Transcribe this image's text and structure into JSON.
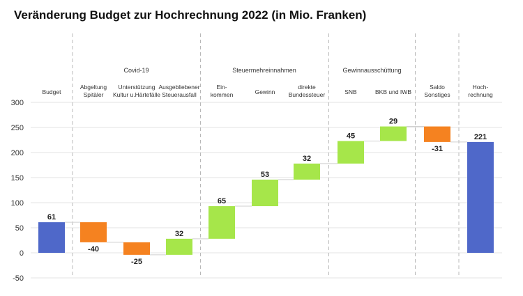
{
  "title": "Veränderung Budget zur Hochrechnung 2022 (in Mio. Franken)",
  "chart_data": {
    "type": "waterfall",
    "title": "Veränderung Budget zur Hochrechnung 2022 (in Mio. Franken)",
    "xlabel": "",
    "ylabel": "",
    "ylim": [
      -50,
      300
    ],
    "yticks": [
      -50,
      0,
      50,
      100,
      150,
      200,
      250,
      300
    ],
    "grid": true,
    "legend": "none",
    "groups": [
      {
        "label": "Covid-19",
        "items": [
          "Abgeltung Spitäler",
          "Unterstützung Kultur u.Härtefälle",
          "Ausgebliebener Steuerausfall"
        ]
      },
      {
        "label": "Steuermehreinnahmen",
        "items": [
          "Einkommen",
          "Gewinn",
          "direkte Bundessteuer"
        ]
      },
      {
        "label": "Gewinnausschüttung",
        "items": [
          "SNB",
          "BKB und IWB"
        ]
      }
    ],
    "bars": [
      {
        "label_lines": [
          "Budget"
        ],
        "value": 61,
        "kind": "total",
        "label": "61"
      },
      {
        "label_lines": [
          "Abgeltung",
          "Spitäler"
        ],
        "value": -40,
        "kind": "delta",
        "label": "-40"
      },
      {
        "label_lines": [
          "Unterstützung",
          "Kultur u.Härtefälle"
        ],
        "value": -25,
        "kind": "delta",
        "label": "-25"
      },
      {
        "label_lines": [
          "Ausgebliebener",
          "Steuerausfall"
        ],
        "value": 32,
        "kind": "delta",
        "label": "32"
      },
      {
        "label_lines": [
          "Ein-",
          "kommen"
        ],
        "value": 65,
        "kind": "delta",
        "label": "65"
      },
      {
        "label_lines": [
          "Gewinn"
        ],
        "value": 53,
        "kind": "delta",
        "label": "53"
      },
      {
        "label_lines": [
          "direkte",
          "Bundessteuer"
        ],
        "value": 32,
        "kind": "delta",
        "label": "32"
      },
      {
        "label_lines": [
          "SNB"
        ],
        "value": 45,
        "kind": "delta",
        "label": "45"
      },
      {
        "label_lines": [
          "BKB und IWB"
        ],
        "value": 29,
        "kind": "delta",
        "label": "29"
      },
      {
        "label_lines": [
          "Saldo",
          "Sonstiges"
        ],
        "value": -31,
        "kind": "delta",
        "label": "-31"
      },
      {
        "label_lines": [
          "Hoch-",
          "rechnung"
        ],
        "value": 221,
        "kind": "total",
        "label": "221"
      }
    ],
    "colors": {
      "total": "#4F68C9",
      "increase": "#A6E64A",
      "decrease": "#F58220",
      "grid": "#E3E3E3",
      "separator": "#B8B8B8",
      "text": "#222222",
      "axis_text": "#333333",
      "connector": "#CFCFCF"
    }
  }
}
